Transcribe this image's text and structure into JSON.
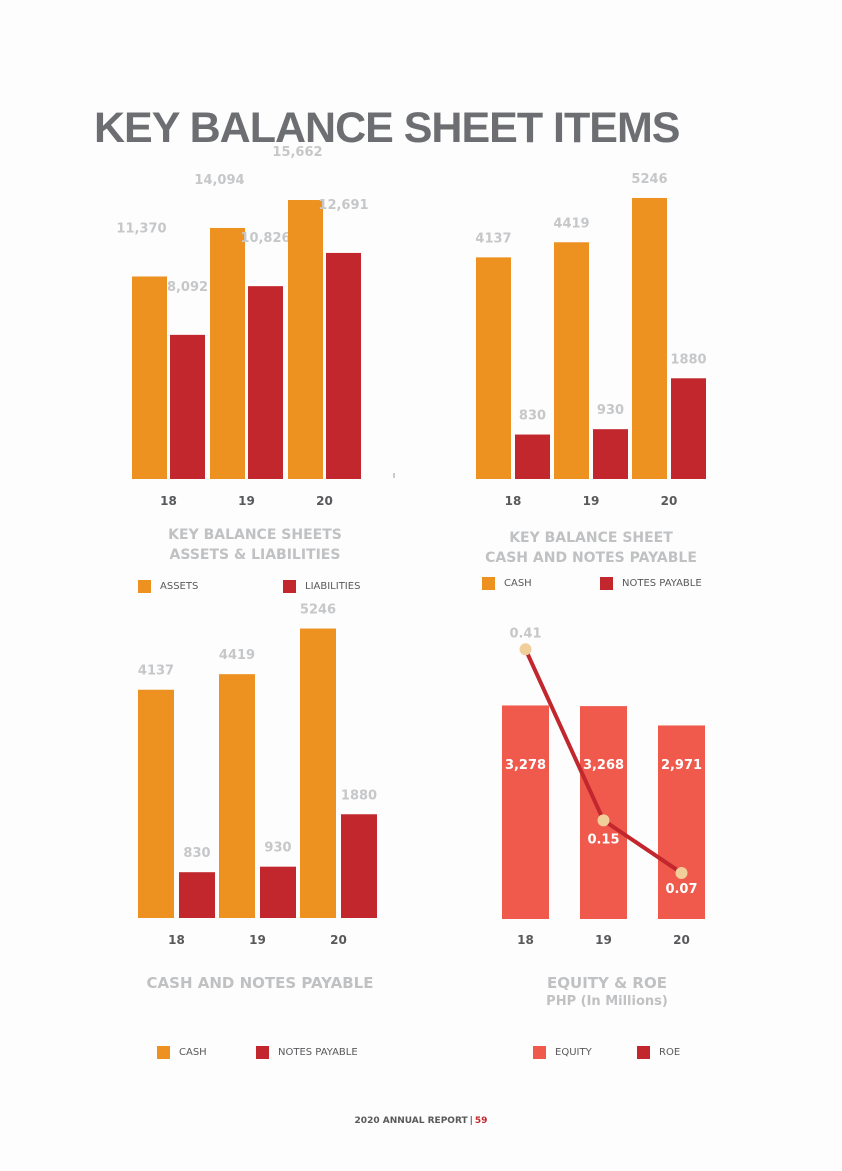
{
  "title": "KEY BALANCE SHEET ITEMS",
  "colors": {
    "orange": "#ed9121",
    "red": "#c1272d",
    "coral": "#ef5a4c",
    "dot": "#f0cf9a",
    "gray_text": "#c6c7c9"
  },
  "chart_data": [
    {
      "type": "bar",
      "categories": [
        "18",
        "19",
        "20"
      ],
      "series": [
        {
          "name": "ASSETS",
          "values": [
            11370,
            14094,
            15662
          ],
          "labels": [
            "11,370",
            "14,094",
            "15,662"
          ]
        },
        {
          "name": "LIABILITIES",
          "values": [
            8092,
            10826,
            12691
          ],
          "labels": [
            "8,092",
            "10,826",
            "12,691"
          ]
        }
      ],
      "caption": [
        "KEY BALANCE SHEETS",
        "ASSETS & LIABILITIES"
      ],
      "ylim": [
        0,
        16000
      ]
    },
    {
      "type": "bar",
      "categories": [
        "18",
        "19",
        "20"
      ],
      "series": [
        {
          "name": "CASH",
          "values": [
            4137,
            4419,
            5246
          ],
          "labels": [
            "4137",
            "4419",
            "5246"
          ]
        },
        {
          "name": "NOTES PAYABLE",
          "values": [
            830,
            930,
            1880
          ],
          "labels": [
            "830",
            "930",
            "1880"
          ]
        }
      ],
      "caption": [
        "KEY BALANCE SHEET",
        "CASH AND NOTES PAYABLE"
      ],
      "ylim": [
        0,
        5600
      ]
    },
    {
      "type": "bar",
      "categories": [
        "18",
        "19",
        "20"
      ],
      "series": [
        {
          "name": "CASH",
          "values": [
            4137,
            4419,
            5246
          ],
          "labels": [
            "4137",
            "4419",
            "5246"
          ]
        },
        {
          "name": "NOTES PAYABLE",
          "values": [
            830,
            930,
            1880
          ],
          "labels": [
            "830",
            "930",
            "1880"
          ]
        }
      ],
      "caption": [
        "CASH AND NOTES PAYABLE"
      ],
      "ylim": [
        0,
        5600
      ]
    },
    {
      "type": "bar",
      "categories": [
        "18",
        "19",
        "20"
      ],
      "series": [
        {
          "name": "EQUITY",
          "values": [
            3278,
            3268,
            2971
          ],
          "labels": [
            "3,278",
            "3,268",
            "2,971"
          ]
        },
        {
          "name": "ROE",
          "type": "line",
          "values": [
            0.41,
            0.15,
            0.07
          ],
          "labels": [
            "0.41",
            "0.15",
            "0.07"
          ]
        }
      ],
      "caption": [
        "EQUITY & ROE"
      ],
      "subcaption": "PHP (In Millions)",
      "ylim": [
        0,
        3500
      ],
      "y2lim": [
        0,
        0.45
      ]
    }
  ],
  "footer": {
    "text": "2020 ANNUAL REPORT",
    "separator": "|",
    "page": "59"
  }
}
